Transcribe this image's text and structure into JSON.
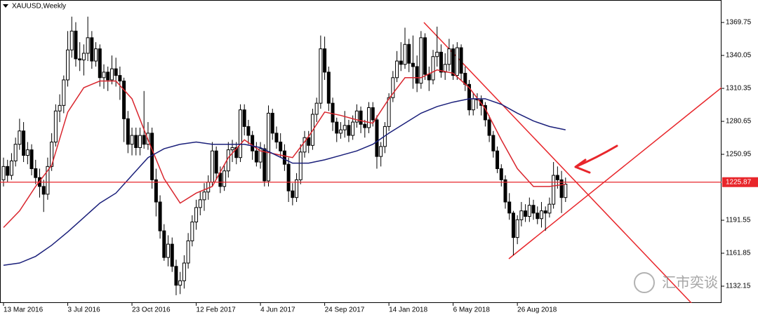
{
  "chart_data": {
    "type": "candlestick",
    "title": "XAUUSD,Weekly",
    "categories": [
      "13 Mar 2016",
      null,
      null,
      null,
      null,
      null,
      null,
      null,
      null,
      null,
      null,
      null,
      null,
      null,
      null,
      null,
      "3 Jul 2016",
      null,
      null,
      null,
      null,
      null,
      null,
      null,
      null,
      null,
      null,
      null,
      null,
      null,
      null,
      null,
      "23 Oct 2016",
      null,
      null,
      null,
      null,
      null,
      null,
      null,
      null,
      null,
      null,
      null,
      null,
      null,
      null,
      null,
      "12 Feb 2017",
      null,
      null,
      null,
      null,
      null,
      null,
      null,
      null,
      null,
      null,
      null,
      null,
      null,
      null,
      null,
      "4 Jun 2017",
      null,
      null,
      null,
      null,
      null,
      null,
      null,
      null,
      null,
      null,
      null,
      null,
      null,
      null,
      null,
      "24 Sep 2017",
      null,
      null,
      null,
      null,
      null,
      null,
      null,
      null,
      null,
      null,
      null,
      null,
      null,
      null,
      null,
      "14 Jan 2018",
      null,
      null,
      null,
      null,
      null,
      null,
      null,
      null,
      null,
      null,
      null,
      null,
      null,
      null,
      null,
      "6 May 2018",
      null,
      null,
      null,
      null,
      null,
      null,
      null,
      null,
      null,
      null,
      null,
      null,
      null,
      null,
      null,
      "26 Aug 2018",
      null,
      null,
      null,
      null,
      null,
      null,
      null,
      null,
      null,
      null,
      null,
      null
    ],
    "ohlc": [
      [
        1228,
        1248,
        1222,
        1240
      ],
      [
        1240,
        1246,
        1226,
        1232
      ],
      [
        1232,
        1252,
        1228,
        1245
      ],
      [
        1245,
        1266,
        1240,
        1260
      ],
      [
        1260,
        1283,
        1255,
        1272
      ],
      [
        1272,
        1280,
        1244,
        1250
      ],
      [
        1250,
        1262,
        1242,
        1255
      ],
      [
        1255,
        1260,
        1232,
        1238
      ],
      [
        1238,
        1246,
        1224,
        1230
      ],
      [
        1230,
        1238,
        1212,
        1222
      ],
      [
        1222,
        1228,
        1199,
        1215
      ],
      [
        1215,
        1248,
        1210,
        1240
      ],
      [
        1240,
        1270,
        1236,
        1262
      ],
      [
        1262,
        1296,
        1258,
        1290
      ],
      [
        1290,
        1305,
        1280,
        1295
      ],
      [
        1295,
        1322,
        1288,
        1318
      ],
      [
        1318,
        1362,
        1312,
        1345
      ],
      [
        1345,
        1375,
        1338,
        1362
      ],
      [
        1362,
        1370,
        1330,
        1337
      ],
      [
        1337,
        1352,
        1326,
        1336
      ],
      [
        1336,
        1350,
        1322,
        1342
      ],
      [
        1342,
        1375,
        1335,
        1356
      ],
      [
        1356,
        1362,
        1328,
        1335
      ],
      [
        1335,
        1352,
        1330,
        1346
      ],
      [
        1346,
        1350,
        1312,
        1320
      ],
      [
        1320,
        1332,
        1310,
        1325
      ],
      [
        1325,
        1330,
        1308,
        1318
      ],
      [
        1318,
        1340,
        1314,
        1328
      ],
      [
        1328,
        1338,
        1312,
        1322
      ],
      [
        1322,
        1330,
        1300,
        1317
      ],
      [
        1317,
        1320,
        1262,
        1283
      ],
      [
        1283,
        1290,
        1252,
        1260
      ],
      [
        1260,
        1275,
        1250,
        1268
      ],
      [
        1268,
        1275,
        1250,
        1257
      ],
      [
        1257,
        1275,
        1250,
        1268
      ],
      [
        1268,
        1308,
        1256,
        1260
      ],
      [
        1260,
        1280,
        1255,
        1270
      ],
      [
        1270,
        1275,
        1220,
        1228
      ],
      [
        1228,
        1238,
        1195,
        1208
      ],
      [
        1208,
        1214,
        1175,
        1182
      ],
      [
        1182,
        1188,
        1155,
        1158
      ],
      [
        1158,
        1178,
        1150,
        1170
      ],
      [
        1170,
        1176,
        1145,
        1150
      ],
      [
        1150,
        1156,
        1124,
        1133
      ],
      [
        1133,
        1145,
        1125,
        1137
      ],
      [
        1137,
        1160,
        1130,
        1153
      ],
      [
        1153,
        1180,
        1148,
        1173
      ],
      [
        1173,
        1196,
        1168,
        1190
      ],
      [
        1190,
        1210,
        1183,
        1203
      ],
      [
        1203,
        1218,
        1196,
        1210
      ],
      [
        1210,
        1225,
        1200,
        1217
      ],
      [
        1217,
        1232,
        1210,
        1226
      ],
      [
        1226,
        1262,
        1222,
        1254
      ],
      [
        1254,
        1258,
        1228,
        1234
      ],
      [
        1234,
        1240,
        1216,
        1222
      ],
      [
        1222,
        1242,
        1218,
        1236
      ],
      [
        1236,
        1262,
        1230,
        1255
      ],
      [
        1255,
        1264,
        1244,
        1257
      ],
      [
        1257,
        1262,
        1242,
        1248
      ],
      [
        1248,
        1296,
        1244,
        1291
      ],
      [
        1291,
        1296,
        1268,
        1276
      ],
      [
        1276,
        1282,
        1260,
        1268
      ],
      [
        1268,
        1272,
        1246,
        1254
      ],
      [
        1254,
        1262,
        1240,
        1244
      ],
      [
        1244,
        1262,
        1238,
        1256
      ],
      [
        1256,
        1260,
        1222,
        1227
      ],
      [
        1227,
        1295,
        1222,
        1288
      ],
      [
        1288,
        1292,
        1264,
        1270
      ],
      [
        1270,
        1276,
        1256,
        1262
      ],
      [
        1262,
        1270,
        1248,
        1254
      ],
      [
        1254,
        1260,
        1236,
        1242
      ],
      [
        1242,
        1248,
        1208,
        1218
      ],
      [
        1218,
        1225,
        1205,
        1212
      ],
      [
        1212,
        1234,
        1208,
        1228
      ],
      [
        1228,
        1260,
        1224,
        1253
      ],
      [
        1253,
        1272,
        1248,
        1266
      ],
      [
        1266,
        1272,
        1252,
        1259
      ],
      [
        1259,
        1292,
        1255,
        1287
      ],
      [
        1287,
        1302,
        1280,
        1297
      ],
      [
        1297,
        1358,
        1292,
        1346
      ],
      [
        1346,
        1357,
        1318,
        1325
      ],
      [
        1325,
        1330,
        1290,
        1297
      ],
      [
        1297,
        1302,
        1272,
        1280
      ],
      [
        1280,
        1284,
        1262,
        1270
      ],
      [
        1270,
        1280,
        1265,
        1273
      ],
      [
        1273,
        1290,
        1266,
        1277
      ],
      [
        1277,
        1282,
        1262,
        1268
      ],
      [
        1268,
        1286,
        1264,
        1280
      ],
      [
        1280,
        1296,
        1275,
        1290
      ],
      [
        1290,
        1294,
        1270,
        1278
      ],
      [
        1278,
        1282,
        1266,
        1275
      ],
      [
        1275,
        1298,
        1270,
        1293
      ],
      [
        1293,
        1298,
        1276,
        1282
      ],
      [
        1282,
        1286,
        1238,
        1249
      ],
      [
        1249,
        1262,
        1240,
        1258
      ],
      [
        1258,
        1280,
        1252,
        1276
      ],
      [
        1276,
        1306,
        1272,
        1302
      ],
      [
        1302,
        1326,
        1298,
        1320
      ],
      [
        1320,
        1344,
        1316,
        1335
      ],
      [
        1335,
        1352,
        1326,
        1332
      ],
      [
        1332,
        1365,
        1328,
        1350
      ],
      [
        1350,
        1355,
        1325,
        1333
      ],
      [
        1333,
        1358,
        1310,
        1330
      ],
      [
        1330,
        1340,
        1307,
        1315
      ],
      [
        1315,
        1362,
        1310,
        1356
      ],
      [
        1356,
        1360,
        1318,
        1323
      ],
      [
        1323,
        1330,
        1308,
        1318
      ],
      [
        1318,
        1345,
        1314,
        1339
      ],
      [
        1339,
        1366,
        1330,
        1343
      ],
      [
        1343,
        1350,
        1320,
        1325
      ],
      [
        1325,
        1342,
        1318,
        1332
      ],
      [
        1332,
        1355,
        1326,
        1346
      ],
      [
        1346,
        1350,
        1318,
        1322
      ],
      [
        1322,
        1352,
        1318,
        1347
      ],
      [
        1347,
        1350,
        1318,
        1324
      ],
      [
        1324,
        1330,
        1308,
        1314
      ],
      [
        1314,
        1318,
        1286,
        1291
      ],
      [
        1291,
        1306,
        1286,
        1301
      ],
      [
        1301,
        1306,
        1292,
        1300
      ],
      [
        1300,
        1304,
        1286,
        1295
      ],
      [
        1295,
        1298,
        1276,
        1282
      ],
      [
        1282,
        1286,
        1262,
        1268
      ],
      [
        1268,
        1272,
        1248,
        1254
      ],
      [
        1254,
        1258,
        1234,
        1238
      ],
      [
        1238,
        1242,
        1222,
        1228
      ],
      [
        1228,
        1232,
        1202,
        1208
      ],
      [
        1208,
        1216,
        1192,
        1198
      ],
      [
        1198,
        1200,
        1160,
        1176
      ],
      [
        1176,
        1196,
        1170,
        1192
      ],
      [
        1192,
        1208,
        1186,
        1200
      ],
      [
        1200,
        1206,
        1190,
        1195
      ],
      [
        1195,
        1212,
        1190,
        1205
      ],
      [
        1205,
        1210,
        1192,
        1198
      ],
      [
        1198,
        1204,
        1188,
        1193
      ],
      [
        1193,
        1208,
        1185,
        1200
      ],
      [
        1200,
        1204,
        1182,
        1198
      ],
      [
        1198,
        1212,
        1194,
        1206
      ],
      [
        1206,
        1244,
        1202,
        1232
      ],
      [
        1232,
        1240,
        1220,
        1228
      ],
      [
        1228,
        1236,
        1198,
        1212
      ],
      [
        1212,
        1230,
        1208,
        1224
      ]
    ],
    "series": [
      {
        "color": "#d9262e",
        "x": [
          0,
          4,
          8,
          12,
          16,
          20,
          24,
          28,
          32,
          36,
          40,
          44,
          48,
          52,
          56,
          60,
          64,
          68,
          72,
          76,
          80,
          84,
          88,
          92,
          96,
          100,
          104,
          108,
          112,
          116,
          120,
          124,
          128,
          132,
          136,
          140
        ],
        "values": [
          1185,
          1200,
          1222,
          1241,
          1289,
          1311,
          1317,
          1317,
          1301,
          1264,
          1229,
          1207,
          1216,
          1222,
          1248,
          1264,
          1254,
          1251,
          1248,
          1267,
          1289,
          1286,
          1282,
          1279,
          1301,
          1320,
          1320,
          1327,
          1324,
          1311,
          1292,
          1264,
          1238,
          1222,
          1222,
          1224
        ]
      },
      {
        "color": "#1a1f7a",
        "x": [
          0,
          4,
          8,
          12,
          16,
          20,
          24,
          28,
          32,
          36,
          40,
          44,
          48,
          52,
          56,
          60,
          64,
          68,
          72,
          76,
          80,
          84,
          88,
          92,
          96,
          100,
          104,
          108,
          112,
          116,
          120,
          124,
          128,
          132,
          136,
          140
        ],
        "values": [
          1151,
          1153,
          1159,
          1169,
          1181,
          1194,
          1207,
          1216,
          1232,
          1248,
          1256,
          1260,
          1262,
          1260,
          1260,
          1260,
          1257,
          1250,
          1243,
          1243,
          1246,
          1250,
          1254,
          1260,
          1270,
          1279,
          1288,
          1294,
          1298,
          1301,
          1301,
          1296,
          1288,
          1281,
          1276,
          1273
        ]
      }
    ],
    "hline": {
      "value": 1225.87,
      "color": "#e8262b"
    },
    "ylim": [
      1117,
      1390
    ],
    "yticks": [
      1369.75,
      1340.05,
      1310.35,
      1280.65,
      1250.95,
      1191.55,
      1161.85,
      1132.15
    ],
    "watermark": "汇市奕谈"
  }
}
